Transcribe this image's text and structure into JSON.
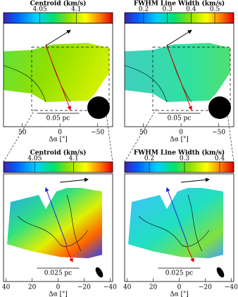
{
  "chart_data": [
    {
      "type": "map",
      "title": "Centroid (km/s)",
      "xlabel": "Δα [\"]",
      "scale_bar": "0.05 pc",
      "clim": [
        4.0,
        4.15
      ],
      "cticks": [
        4.05,
        4.1
      ],
      "xlim": [
        75,
        -70
      ],
      "xticks": [
        50,
        0,
        {
          "value": -50,
          "label": "−50"
        }
      ]
    },
    {
      "type": "map",
      "title": "FWHM Line Width (km/s)",
      "xlabel": "Δα [\"]",
      "scale_bar": "0.05 pc",
      "clim": [
        0.12,
        0.58
      ],
      "cticks": [
        0.2,
        0.3,
        0.4,
        0.5
      ],
      "xlim": [
        75,
        -70
      ],
      "xticks": [
        50,
        0,
        {
          "value": -50,
          "label": "−50"
        }
      ]
    },
    {
      "type": "map",
      "title": "Centroid (km/s)",
      "xlabel": "Δα [\"]",
      "scale_bar": "0.025 pc",
      "clim": [
        4.01,
        4.15
      ],
      "cticks": [
        4.05,
        4.1
      ],
      "xlim": [
        42,
        -42
      ],
      "xticks": [
        40,
        20,
        0,
        {
          "value": -20,
          "label": "−20"
        },
        {
          "value": -40,
          "label": "−40"
        }
      ]
    },
    {
      "type": "map",
      "title": "FWHM Line Width (km/s)",
      "xlabel": "Δα [\"]",
      "scale_bar": "0.025 pc",
      "clim": [
        0.13,
        0.44
      ],
      "cticks": [
        0.2,
        0.3,
        0.4
      ],
      "xlim": [
        42,
        -42
      ],
      "xticks": [
        40,
        20,
        0,
        {
          "value": -20,
          "label": "−20"
        },
        {
          "value": -40,
          "label": "−40"
        }
      ]
    }
  ]
}
